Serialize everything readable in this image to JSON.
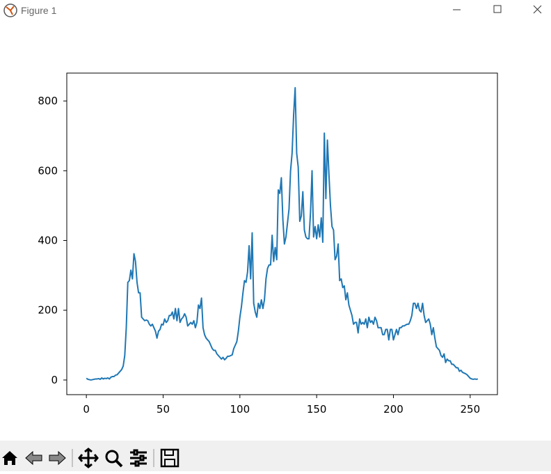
{
  "window": {
    "title": "Figure 1"
  },
  "chart_data": {
    "type": "line",
    "color": "#1f77b4",
    "x": [
      0,
      1,
      2,
      3,
      4,
      5,
      6,
      7,
      8,
      9,
      10,
      11,
      12,
      13,
      14,
      15,
      16,
      17,
      18,
      19,
      20,
      21,
      22,
      23,
      24,
      25,
      26,
      27,
      28,
      29,
      30,
      31,
      32,
      33,
      34,
      35,
      36,
      37,
      38,
      39,
      40,
      41,
      42,
      43,
      44,
      45,
      46,
      47,
      48,
      49,
      50,
      51,
      52,
      53,
      54,
      55,
      56,
      57,
      58,
      59,
      60,
      61,
      62,
      63,
      64,
      65,
      66,
      67,
      68,
      69,
      70,
      71,
      72,
      73,
      74,
      75,
      76,
      77,
      78,
      79,
      80,
      81,
      82,
      83,
      84,
      85,
      86,
      87,
      88,
      89,
      90,
      91,
      92,
      93,
      94,
      95,
      96,
      97,
      98,
      99,
      100,
      101,
      102,
      103,
      104,
      105,
      106,
      107,
      108,
      109,
      110,
      111,
      112,
      113,
      114,
      115,
      116,
      117,
      118,
      119,
      120,
      121,
      122,
      123,
      124,
      125,
      126,
      127,
      128,
      129,
      130,
      131,
      132,
      133,
      134,
      135,
      136,
      137,
      138,
      139,
      140,
      141,
      142,
      143,
      144,
      145,
      146,
      147,
      148,
      149,
      150,
      151,
      152,
      153,
      154,
      155,
      156,
      157,
      158,
      159,
      160,
      161,
      162,
      163,
      164,
      165,
      166,
      167,
      168,
      169,
      170,
      171,
      172,
      173,
      174,
      175,
      176,
      177,
      178,
      179,
      180,
      181,
      182,
      183,
      184,
      185,
      186,
      187,
      188,
      189,
      190,
      191,
      192,
      193,
      194,
      195,
      196,
      197,
      198,
      199,
      200,
      201,
      202,
      203,
      204,
      205,
      206,
      207,
      208,
      209,
      210,
      211,
      212,
      213,
      214,
      215,
      216,
      217,
      218,
      219,
      220,
      221,
      222,
      223,
      224,
      225,
      226,
      227,
      228,
      229,
      230,
      231,
      232,
      233,
      234,
      235,
      236,
      237,
      238,
      239,
      240,
      241,
      242,
      243,
      244,
      245,
      246,
      247,
      248,
      249,
      250,
      251,
      252,
      253,
      254,
      255
    ],
    "values": [
      5,
      2,
      1,
      0,
      1,
      2,
      3,
      3,
      4,
      2,
      6,
      3,
      5,
      4,
      6,
      3,
      8,
      10,
      10,
      14,
      15,
      20,
      25,
      30,
      40,
      70,
      150,
      280,
      285,
      315,
      290,
      362,
      340,
      280,
      250,
      250,
      180,
      175,
      170,
      172,
      170,
      160,
      155,
      160,
      150,
      140,
      120,
      140,
      145,
      160,
      158,
      175,
      165,
      170,
      185,
      185,
      195,
      175,
      205,
      170,
      205,
      165,
      175,
      180,
      190,
      180,
      155,
      160,
      165,
      160,
      170,
      150,
      165,
      215,
      205,
      235,
      150,
      130,
      120,
      115,
      110,
      100,
      90,
      85,
      85,
      75,
      70,
      65,
      60,
      65,
      58,
      62,
      68,
      68,
      70,
      72,
      90,
      100,
      110,
      140,
      180,
      210,
      250,
      285,
      280,
      310,
      385,
      290,
      422,
      220,
      195,
      180,
      220,
      205,
      230,
      205,
      230,
      290,
      320,
      330,
      330,
      415,
      340,
      380,
      345,
      545,
      535,
      580,
      460,
      390,
      410,
      450,
      490,
      600,
      650,
      760,
      838,
      650,
      610,
      455,
      470,
      540,
      430,
      410,
      405,
      405,
      480,
      600,
      410,
      440,
      405,
      445,
      410,
      465,
      395,
      708,
      520,
      688,
      590,
      500,
      440,
      430,
      345,
      355,
      390,
      285,
      290,
      265,
      270,
      230,
      250,
      215,
      200,
      185,
      160,
      165,
      165,
      135,
      175,
      160,
      165,
      160,
      175,
      150,
      180,
      165,
      170,
      160,
      180,
      170,
      150,
      150,
      150,
      130,
      130,
      145,
      145,
      115,
      145,
      145,
      115,
      130,
      145,
      130,
      150,
      150,
      155,
      155,
      158,
      160,
      160,
      170,
      185,
      220,
      220,
      205,
      220,
      200,
      195,
      220,
      185,
      165,
      170,
      175,
      160,
      130,
      150,
      120,
      95,
      90,
      85,
      70,
      65,
      75,
      50,
      60,
      55,
      55,
      45,
      45,
      40,
      35,
      35,
      25,
      28,
      22,
      20,
      18,
      15,
      10,
      5,
      3,
      2,
      3,
      2,
      3
    ],
    "xlim": [
      -12.75,
      267.75
    ],
    "xticks": [
      0,
      50,
      100,
      150,
      200,
      250
    ],
    "ylim": [
      -42,
      880
    ],
    "yticks": [
      0,
      200,
      400,
      600,
      800
    ]
  }
}
